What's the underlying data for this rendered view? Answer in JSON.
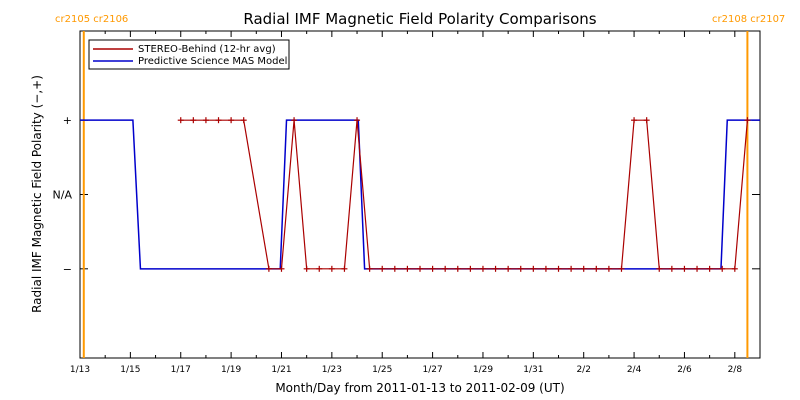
{
  "chart_data": {
    "type": "line",
    "title": "Radial IMF Magnetic Field Polarity Comparisons",
    "xlabel": "Month/Day from 2011-01-13 to 2011-02-09 (UT)",
    "ylabel": "Radial IMF Magnetic Field Polarity (−,+)",
    "x_range_days": [
      0,
      27
    ],
    "y_range": [
      -2.2,
      2.2
    ],
    "x_ticks": [
      {
        "day": 0,
        "label": "1/13"
      },
      {
        "day": 2,
        "label": "1/15"
      },
      {
        "day": 4,
        "label": "1/17"
      },
      {
        "day": 6,
        "label": "1/19"
      },
      {
        "day": 8,
        "label": "1/21"
      },
      {
        "day": 10,
        "label": "1/23"
      },
      {
        "day": 12,
        "label": "1/25"
      },
      {
        "day": 14,
        "label": "1/27"
      },
      {
        "day": 16,
        "label": "1/29"
      },
      {
        "day": 18,
        "label": "1/31"
      },
      {
        "day": 20,
        "label": "2/2"
      },
      {
        "day": 22,
        "label": "2/4"
      },
      {
        "day": 24,
        "label": "2/6"
      },
      {
        "day": 26,
        "label": "2/8"
      }
    ],
    "y_ticks": [
      {
        "value": 1,
        "label": "+"
      },
      {
        "value": 0,
        "label": "N/A"
      },
      {
        "value": -1,
        "label": "−"
      }
    ],
    "grid": false,
    "legend_position": "top-left",
    "carrington_markers": {
      "left_label": "cr2105 cr2106",
      "right_label": "cr2108 cr2107",
      "color": "#ff9900",
      "left_day": 0.15,
      "right_day": 26.5
    },
    "series": [
      {
        "name": "STEREO-Behind (12-hr avg)",
        "color": "#aa0000",
        "marker": "plus",
        "segments": [
          [
            [
              4.0,
              1
            ],
            [
              4.5,
              1
            ],
            [
              5.0,
              1
            ],
            [
              5.5,
              1
            ],
            [
              6.0,
              1
            ],
            [
              6.5,
              1
            ],
            [
              7.5,
              -1
            ],
            [
              8.0,
              -1
            ],
            [
              8.5,
              1
            ],
            [
              9.0,
              -1
            ],
            [
              9.5,
              -1
            ],
            [
              10.0,
              -1
            ],
            [
              10.5,
              -1
            ],
            [
              11.0,
              1
            ],
            [
              11.5,
              -1
            ],
            [
              12.0,
              -1
            ],
            [
              12.5,
              -1
            ],
            [
              13.0,
              -1
            ],
            [
              13.5,
              -1
            ],
            [
              14.0,
              -1
            ],
            [
              14.5,
              -1
            ],
            [
              15.0,
              -1
            ],
            [
              15.5,
              -1
            ],
            [
              16.0,
              -1
            ],
            [
              16.5,
              -1
            ],
            [
              17.0,
              -1
            ],
            [
              17.5,
              -1
            ],
            [
              18.0,
              -1
            ],
            [
              18.5,
              -1
            ],
            [
              19.0,
              -1
            ],
            [
              19.5,
              -1
            ],
            [
              20.0,
              -1
            ],
            [
              20.5,
              -1
            ],
            [
              21.0,
              -1
            ],
            [
              21.5,
              -1
            ],
            [
              22.0,
              1
            ],
            [
              22.5,
              1
            ],
            [
              23.0,
              -1
            ],
            [
              23.5,
              -1
            ],
            [
              24.0,
              -1
            ],
            [
              24.5,
              -1
            ],
            [
              25.0,
              -1
            ],
            [
              25.5,
              -1
            ],
            [
              26.0,
              -1
            ],
            [
              26.5,
              1
            ]
          ]
        ]
      },
      {
        "name": "Predictive Science MAS Model",
        "color": "#0000cc",
        "marker": "none",
        "points": [
          [
            0.0,
            1
          ],
          [
            2.1,
            1
          ],
          [
            2.4,
            -1
          ],
          [
            7.95,
            -1
          ],
          [
            8.2,
            1
          ],
          [
            11.05,
            1
          ],
          [
            11.3,
            -1
          ],
          [
            25.45,
            -1
          ],
          [
            25.7,
            1
          ],
          [
            27.0,
            1
          ]
        ]
      }
    ]
  }
}
